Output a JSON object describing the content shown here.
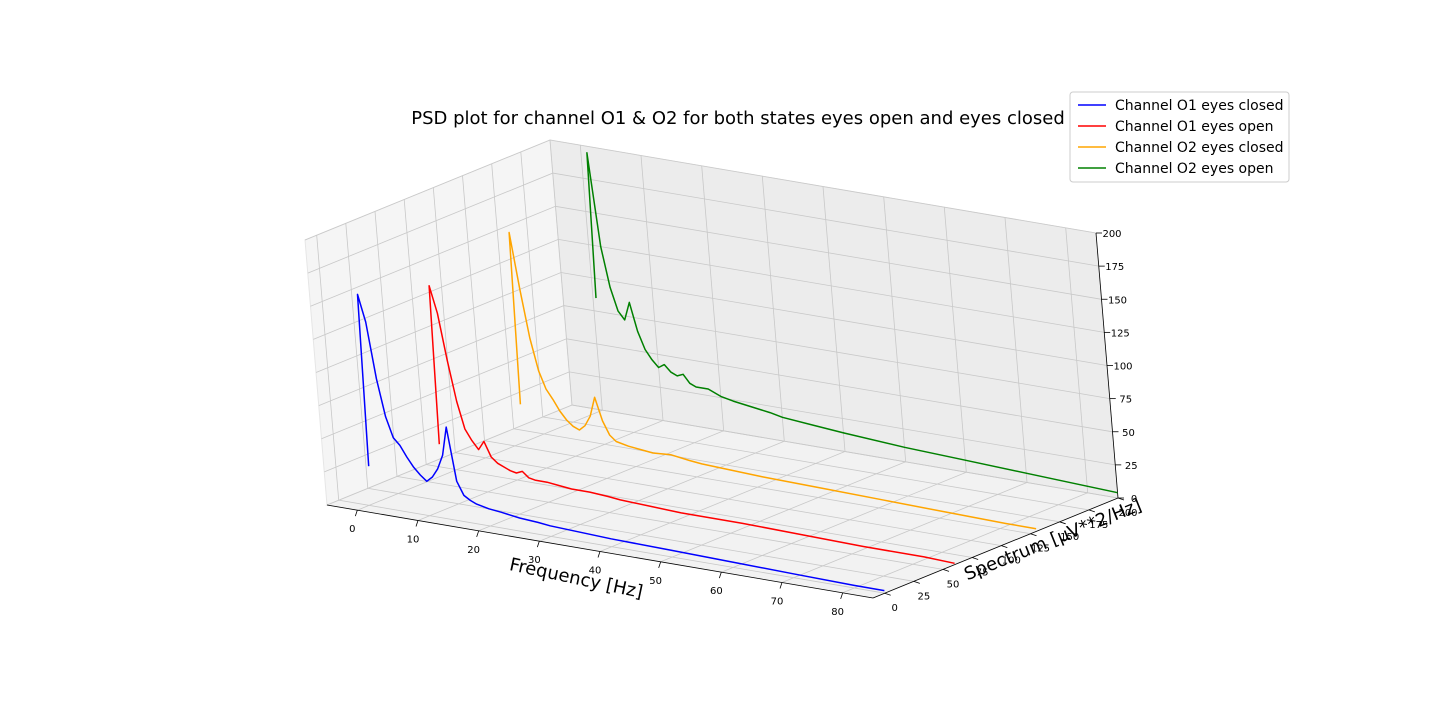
{
  "chart_data": {
    "type": "line",
    "projection": "3d",
    "title": "PSD plot for channel O1 & O2 for both states eyes open and eyes closed",
    "xlabel": "Frequency [Hz]",
    "ylabel": "Spectrum [μV**2/Hz]",
    "xlim": [
      -5,
      85
    ],
    "ylim": [
      -10,
      200
    ],
    "zlim": [
      0,
      200
    ],
    "x_ticks": [
      "0",
      "10",
      "20",
      "30",
      "40",
      "50",
      "60",
      "70",
      "80"
    ],
    "y_ticks": [
      "0",
      "25",
      "50",
      "75",
      "100",
      "125",
      "150",
      "175",
      "200"
    ],
    "z_ticks": [
      "0",
      "25",
      "50",
      "75",
      "100",
      "125",
      "150",
      "175",
      "200"
    ],
    "grid": true,
    "legend_position": "top-right",
    "series": [
      {
        "name": "Channel O1 eyes closed",
        "color": "#0000ff",
        "depth": 0,
        "x": [
          0.5,
          1,
          2,
          3,
          4,
          5,
          6,
          7,
          8,
          9,
          10,
          11,
          12,
          13,
          14,
          15,
          16,
          17,
          18,
          20,
          22,
          25,
          28,
          30,
          35,
          40,
          50,
          60,
          70,
          80,
          85
        ],
        "y": [
          30,
          160,
          140,
          98,
          70,
          55,
          50,
          42,
          35,
          30,
          26,
          30,
          37,
          48,
          70,
          30,
          20,
          17,
          15,
          13,
          12,
          10,
          9,
          8,
          7,
          6,
          5,
          4,
          3,
          2,
          2
        ]
      },
      {
        "name": "Channel O1 eyes open",
        "color": "#ff0000",
        "depth": 60,
        "x": [
          0.5,
          1,
          2,
          3,
          4,
          5,
          6,
          7,
          8,
          9,
          10,
          11,
          12,
          13,
          14,
          15,
          16,
          18,
          20,
          22,
          25,
          28,
          30,
          35,
          40,
          50,
          60,
          70,
          80,
          85
        ],
        "y": [
          25,
          145,
          125,
          90,
          60,
          40,
          32,
          26,
          33,
          22,
          18,
          16,
          14,
          13,
          15,
          11,
          10,
          10,
          9,
          8,
          8,
          7,
          6,
          5,
          4,
          4,
          3,
          2,
          2,
          1
        ]
      },
      {
        "name": "Channel O2 eyes closed",
        "color": "#ffa500",
        "depth": 130,
        "x": [
          0.5,
          1,
          2,
          3,
          4,
          5,
          6,
          7,
          8,
          9,
          10,
          11,
          12,
          13,
          14,
          15,
          16,
          18,
          20,
          22,
          25,
          28,
          30,
          35,
          40,
          50,
          60,
          70,
          80,
          85
        ],
        "y": [
          30,
          160,
          118,
          82,
          58,
          45,
          38,
          30,
          24,
          20,
          18,
          22,
          30,
          45,
          28,
          18,
          14,
          12,
          11,
          10,
          11,
          9,
          8,
          7,
          6,
          5,
          4,
          3,
          2,
          2
        ]
      },
      {
        "name": "Channel O2 eyes open",
        "color": "#008000",
        "depth": 200,
        "x": [
          0.5,
          1,
          2,
          3,
          4,
          5,
          6,
          7,
          8,
          9,
          10,
          11,
          12,
          13,
          14,
          15,
          16,
          18,
          20,
          22,
          25,
          28,
          30,
          35,
          40,
          50,
          60,
          70,
          80,
          85
        ],
        "y": [
          85,
          195,
          125,
          95,
          78,
          72,
          86,
          65,
          52,
          45,
          40,
          43,
          38,
          36,
          38,
          32,
          30,
          30,
          26,
          24,
          22,
          20,
          18,
          16,
          14,
          11,
          9,
          7,
          5,
          4
        ]
      }
    ]
  }
}
